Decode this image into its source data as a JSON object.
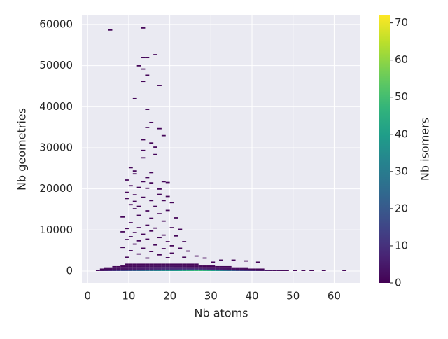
{
  "chart_data": {
    "type": "hist2d",
    "xlabel": "Nb atoms",
    "ylabel": "Nb geometries",
    "colorbar_label": "Nb isomers",
    "colormap": "viridis",
    "clim": [
      0,
      72
    ],
    "cticks": [
      0,
      10,
      20,
      30,
      40,
      50,
      60,
      70
    ],
    "xlim": [
      -1.4,
      66.4
    ],
    "xticks": [
      0,
      10,
      20,
      30,
      40,
      50,
      60
    ],
    "ylim": [
      -2900,
      62200
    ],
    "yticks": [
      0,
      10000,
      20000,
      30000,
      40000,
      50000,
      60000
    ],
    "grid": true,
    "x_bin_width": 1,
    "y_bin_height": 300,
    "rows": [
      {
        "y": 0,
        "x": [
          2,
          3,
          4,
          5,
          6,
          7,
          8,
          9,
          10,
          11,
          12,
          13,
          14,
          15,
          16,
          17,
          18,
          19,
          20,
          21,
          22,
          23,
          24,
          25,
          26,
          27,
          28,
          29,
          30,
          31,
          32,
          33,
          34,
          35,
          36,
          37,
          38,
          39,
          40,
          41,
          42,
          43,
          44,
          45,
          46,
          47,
          48,
          50,
          52,
          54,
          57,
          62
        ],
        "counts": [
          2,
          4,
          6,
          8,
          10,
          12,
          14,
          16,
          18,
          20,
          22,
          24,
          26,
          28,
          30,
          32,
          34,
          35,
          36,
          38,
          40,
          42,
          44,
          46,
          48,
          48,
          46,
          44,
          40,
          36,
          32,
          28,
          24,
          20,
          16,
          14,
          12,
          10,
          8,
          6,
          5,
          4,
          3,
          2,
          2,
          1,
          1,
          1,
          1,
          1,
          1,
          1
        ]
      },
      {
        "y": 300,
        "x": [
          3,
          4,
          5,
          6,
          7,
          8,
          9,
          10,
          11,
          12,
          13,
          14,
          15,
          16,
          17,
          18,
          19,
          20,
          21,
          22,
          23,
          24,
          25,
          26,
          27,
          28,
          29,
          30,
          31,
          32,
          33,
          34,
          35,
          36,
          37,
          38,
          39,
          40,
          41,
          42
        ],
        "counts": [
          1,
          2,
          2,
          3,
          3,
          4,
          4,
          5,
          5,
          6,
          6,
          7,
          7,
          8,
          8,
          9,
          9,
          10,
          10,
          11,
          11,
          12,
          12,
          12,
          11,
          10,
          9,
          8,
          7,
          6,
          5,
          4,
          4,
          3,
          3,
          2,
          2,
          1,
          1,
          1
        ]
      },
      {
        "y": 600,
        "x": [
          4,
          5,
          6,
          7,
          8,
          9,
          10,
          11,
          12,
          13,
          14,
          15,
          16,
          17,
          18,
          19,
          20,
          21,
          22,
          23,
          24,
          25,
          26,
          27,
          28,
          29,
          30,
          31,
          32,
          33,
          34,
          35,
          36,
          37,
          38
        ],
        "counts": [
          1,
          1,
          2,
          2,
          2,
          3,
          3,
          3,
          4,
          4,
          4,
          5,
          5,
          5,
          6,
          6,
          6,
          6,
          5,
          5,
          4,
          4,
          3,
          3,
          3,
          2,
          2,
          2,
          1,
          1,
          1,
          1,
          1,
          1,
          1
        ]
      },
      {
        "y": 900,
        "x": [
          6,
          7,
          8,
          9,
          10,
          11,
          12,
          13,
          14,
          15,
          16,
          17,
          18,
          19,
          20,
          21,
          22,
          23,
          24,
          25,
          26,
          27,
          28,
          29,
          30,
          31,
          32,
          33,
          34
        ],
        "counts": [
          1,
          1,
          1,
          2,
          2,
          2,
          2,
          3,
          3,
          3,
          3,
          3,
          4,
          4,
          4,
          3,
          3,
          3,
          2,
          2,
          2,
          2,
          1,
          1,
          1,
          1,
          1,
          1,
          1
        ]
      },
      {
        "y": 1200,
        "x": [
          8,
          9,
          10,
          11,
          12,
          13,
          14,
          15,
          16,
          17,
          18,
          19,
          20,
          21,
          22,
          23,
          24,
          25,
          26,
          27,
          28,
          29,
          30
        ],
        "counts": [
          1,
          1,
          1,
          1,
          2,
          2,
          2,
          2,
          2,
          2,
          2,
          2,
          2,
          2,
          2,
          1,
          1,
          1,
          1,
          1,
          1,
          1,
          1
        ]
      },
      {
        "y": 1500,
        "x": [
          9,
          10,
          11,
          12,
          13,
          14,
          15,
          16,
          17,
          18,
          19,
          20,
          21,
          22,
          23,
          24,
          25,
          26
        ],
        "counts": [
          1,
          1,
          1,
          1,
          1,
          1,
          1,
          1,
          1,
          1,
          1,
          1,
          1,
          1,
          1,
          1,
          1,
          1
        ]
      }
    ],
    "points": {
      "x": [
        5,
        13,
        13,
        14,
        16,
        12,
        13,
        14,
        13,
        17,
        11,
        14,
        15,
        14,
        17,
        18,
        15,
        13,
        16,
        13,
        16,
        13,
        10,
        11,
        11,
        15,
        14,
        9,
        13,
        15,
        18,
        19,
        10,
        12,
        14,
        17,
        9,
        11,
        13,
        17,
        19,
        9,
        11,
        15,
        18,
        10,
        12,
        16,
        20,
        11,
        14,
        19,
        17,
        8,
        12,
        15,
        21,
        10,
        18,
        14,
        9,
        12,
        16,
        20,
        22,
        8,
        11,
        15,
        13,
        18,
        10,
        17,
        21,
        9,
        12,
        14,
        19,
        23,
        11,
        16,
        20,
        8,
        13,
        18,
        22,
        10,
        15,
        24,
        12,
        17,
        20,
        26,
        9,
        14,
        19,
        23,
        28,
        32,
        30,
        35,
        38,
        41
      ],
      "y": [
        58500,
        59000,
        51800,
        51800,
        52500,
        49800,
        49000,
        47500,
        46000,
        45000,
        41800,
        39200,
        36000,
        34800,
        34500,
        32800,
        31000,
        31800,
        30000,
        29200,
        28200,
        27400,
        25000,
        24200,
        23500,
        23800,
        22600,
        22000,
        21600,
        21300,
        21600,
        21400,
        20600,
        20200,
        20000,
        19800,
        19000,
        18400,
        17800,
        18500,
        18000,
        17500,
        16800,
        17000,
        17000,
        16000,
        15600,
        15600,
        16500,
        15000,
        14500,
        14600,
        13800,
        13000,
        13400,
        12700,
        12800,
        11600,
        12000,
        11000,
        10200,
        10400,
        10300,
        10400,
        10000,
        9400,
        9200,
        9600,
        8800,
        8600,
        8200,
        8000,
        8400,
        7500,
        7200,
        7600,
        7000,
        7000,
        6400,
        6200,
        6000,
        5600,
        5400,
        5300,
        5400,
        4800,
        4600,
        4700,
        4000,
        3800,
        4200,
        3500,
        3200,
        3000,
        3100,
        3200,
        3000,
        2500,
        2000,
        2500,
        2300,
        2000
      ],
      "counts": [
        1,
        1,
        1,
        1,
        1,
        1,
        1,
        1,
        1,
        1,
        1,
        1,
        1,
        1,
        1,
        1,
        1,
        1,
        1,
        1,
        1,
        1,
        1,
        1,
        1,
        1,
        1,
        1,
        1,
        1,
        1,
        1,
        1,
        1,
        1,
        1,
        1,
        1,
        1,
        1,
        1,
        1,
        1,
        1,
        1,
        1,
        1,
        1,
        1,
        1,
        1,
        1,
        1,
        1,
        1,
        1,
        1,
        1,
        1,
        1,
        1,
        1,
        1,
        1,
        1,
        1,
        1,
        1,
        1,
        1,
        1,
        1,
        1,
        1,
        1,
        1,
        1,
        1,
        1,
        1,
        1,
        1,
        1,
        1,
        1,
        1,
        1,
        1,
        1,
        1,
        1,
        1,
        1,
        1,
        1,
        1,
        1,
        1,
        1,
        1,
        1,
        1
      ]
    }
  }
}
